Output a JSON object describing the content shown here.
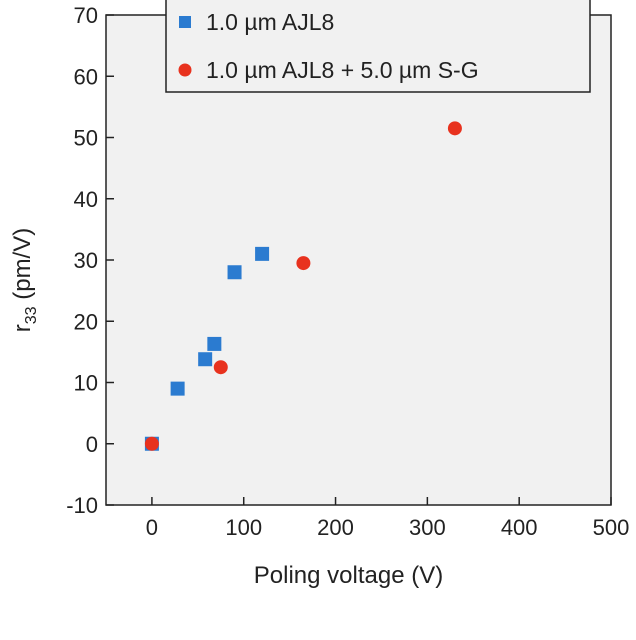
{
  "chart_data": {
    "type": "scatter",
    "title": "",
    "xlabel": "Poling voltage (V)",
    "ylabel": {
      "main": "r",
      "sub": "33",
      "unit": " (pm/V)"
    },
    "xlim": [
      -50,
      500
    ],
    "ylim": [
      -10,
      70
    ],
    "xticks": [
      0,
      100,
      200,
      300,
      400,
      500
    ],
    "yticks": [
      -10,
      0,
      10,
      20,
      30,
      40,
      50,
      60,
      70
    ],
    "grid": false,
    "legend_position": "top",
    "series": [
      {
        "name": "1.0 µm AJL8",
        "marker": "square",
        "color": "#2b7bd0",
        "points": [
          [
            0,
            0
          ],
          [
            28,
            9
          ],
          [
            58,
            13.8
          ],
          [
            68,
            16.3
          ],
          [
            90,
            28
          ],
          [
            120,
            31
          ]
        ]
      },
      {
        "name": "1.0 µm AJL8 + 5.0 µm S-G",
        "marker": "circle",
        "color": "#e8321e",
        "points": [
          [
            0,
            0
          ],
          [
            75,
            12.5
          ],
          [
            165,
            29.5
          ],
          [
            330,
            51.5
          ]
        ]
      }
    ]
  }
}
